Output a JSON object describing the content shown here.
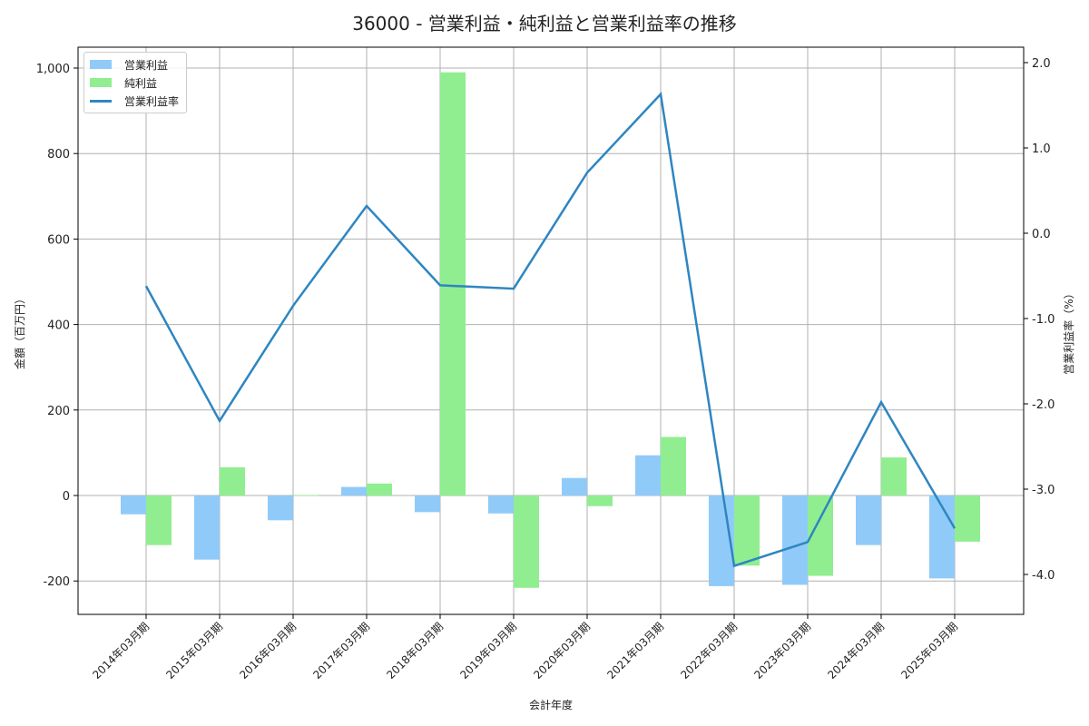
{
  "title": "36000 - 営業利益・純利益と営業利益率の推移",
  "legend": {
    "op_label": "営業利益",
    "net_label": "純利益",
    "rate_label": "営業利益率"
  },
  "axes": {
    "xlabel": "会計年度",
    "ylabel_left": "金額（百万円）",
    "ylabel_right": "営業利益率（%）"
  },
  "colors": {
    "operating_profit": "#90CAF9",
    "net_profit": "#90EE90",
    "margin_line": "#2E86C1",
    "grid": "#b0b0b0"
  },
  "chart_data": {
    "type": "bar",
    "title": "36000 - 営業利益・純利益と営業利益率の推移",
    "xlabel": "会計年度",
    "ylabel": "金額（百万円）",
    "y2label": "営業利益率（%）",
    "categories": [
      "2014年03月期",
      "2015年03月期",
      "2016年03月期",
      "2017年03月期",
      "2018年03月期",
      "2019年03月期",
      "2020年03月期",
      "2021年03月期",
      "2022年03月期",
      "2023年03月期",
      "2024年03月期",
      "2025年03月期"
    ],
    "series": [
      {
        "name": "営業利益",
        "type": "bar",
        "axis": "left",
        "values": [
          -44,
          -150,
          -58,
          20,
          -39,
          -42,
          41,
          94,
          -212,
          -209,
          -116,
          -194
        ]
      },
      {
        "name": "純利益",
        "type": "bar",
        "axis": "left",
        "values": [
          -116,
          66,
          1,
          28,
          990,
          -216,
          -25,
          137,
          -164,
          -188,
          89,
          -108
        ]
      },
      {
        "name": "営業利益率",
        "type": "line",
        "axis": "right",
        "values": [
          -0.62,
          -2.2,
          -0.85,
          0.32,
          -0.61,
          -0.65,
          0.71,
          1.63,
          -3.9,
          -3.62,
          -1.98,
          -3.46
        ]
      }
    ],
    "ylim": [
      -275,
      1050
    ],
    "y2lim": [
      -4.45,
      2.2
    ],
    "yticks": [
      -200,
      0,
      200,
      400,
      600,
      800,
      1000
    ],
    "ytick_labels": [
      "-200",
      "0",
      "200",
      "400",
      "600",
      "800",
      "1,000"
    ],
    "y2ticks": [
      -4.0,
      -3.0,
      -2.0,
      -1.0,
      0.0,
      1.0,
      2.0
    ],
    "y2tick_labels": [
      "-4.0",
      "-3.0",
      "-2.0",
      "-1.0",
      "0.0",
      "1.0",
      "2.0"
    ],
    "grid": true,
    "legend_position": "upper left"
  }
}
